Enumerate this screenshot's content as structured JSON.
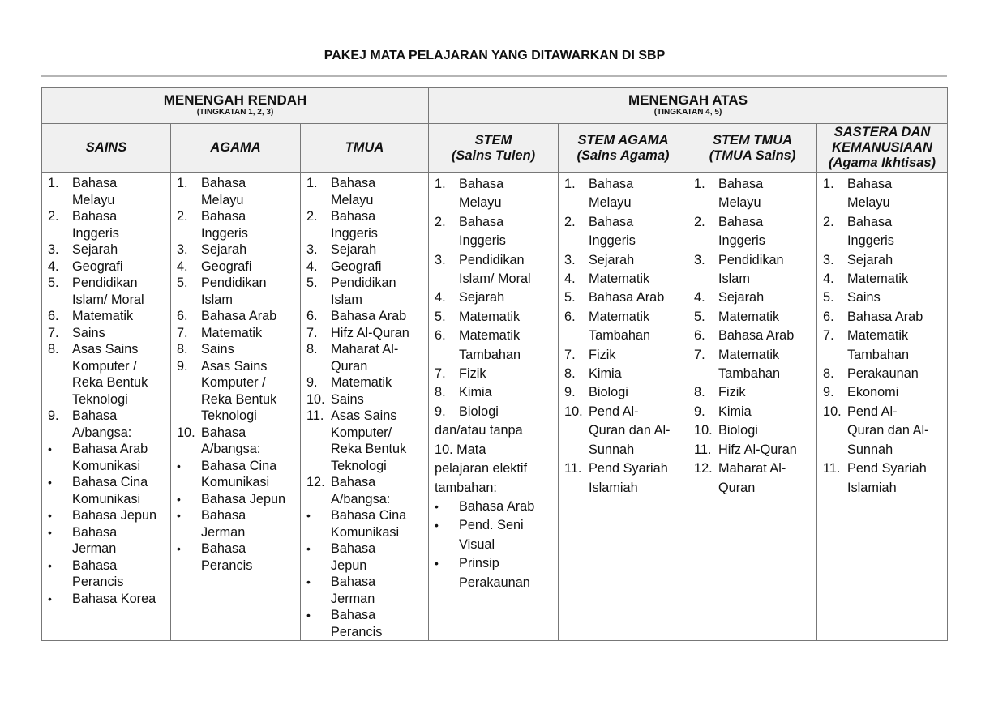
{
  "title": "PAKEJ MATA PELAJARAN YANG DITAWARKAN DI SBP",
  "groups": [
    {
      "label": "MENENGAH RENDAH",
      "sub": "(TINGKATAN 1, 2, 3)"
    },
    {
      "label": "MENENGAH ATAS",
      "sub": "(TINGKATAN 4, 5)"
    }
  ],
  "columns": [
    {
      "header": "SAINS",
      "items": [
        {
          "m": "1.",
          "t": "Bahasa\nMelayu"
        },
        {
          "m": "2.",
          "t": "Bahasa\nInggeris"
        },
        {
          "m": "3.",
          "t": "Sejarah"
        },
        {
          "m": "4.",
          "t": "Geografi"
        },
        {
          "m": "5.",
          "t": "Pendidikan\nIslam/ Moral"
        },
        {
          "m": "6.",
          "t": "Matematik"
        },
        {
          "m": "7.",
          "t": "Sains"
        },
        {
          "m": "8.",
          "t": "Asas Sains\nKomputer /\nReka Bentuk\nTeknologi"
        },
        {
          "m": "9.",
          "t": "Bahasa\nA/bangsa:"
        },
        {
          "m": "•",
          "t": "Bahasa Arab\nKomunikasi"
        },
        {
          "m": "•",
          "t": "Bahasa Cina\nKomunikasi"
        },
        {
          "m": "•",
          "t": "Bahasa Jepun"
        },
        {
          "m": "•",
          "t": "Bahasa\nJerman"
        },
        {
          "m": "•",
          "t": "Bahasa\nPerancis"
        },
        {
          "m": "•",
          "t": "Bahasa Korea"
        }
      ]
    },
    {
      "header": "AGAMA",
      "items": [
        {
          "m": "1.",
          "t": "Bahasa\nMelayu"
        },
        {
          "m": "2.",
          "t": "Bahasa\nInggeris"
        },
        {
          "m": "3.",
          "t": "Sejarah"
        },
        {
          "m": "4.",
          "t": "Geografi"
        },
        {
          "m": "5.",
          "t": "Pendidikan\nIslam"
        },
        {
          "m": "6.",
          "t": "Bahasa Arab"
        },
        {
          "m": "7.",
          "t": "Matematik"
        },
        {
          "m": "8.",
          "t": "Sains"
        },
        {
          "m": "9.",
          "t": "Asas Sains\nKomputer /\nReka Bentuk\nTeknologi"
        },
        {
          "m": "10.",
          "t": "Bahasa\nA/bangsa:"
        },
        {
          "m": "•",
          "t": "Bahasa Cina\nKomunikasi"
        },
        {
          "m": "•",
          "t": "Bahasa Jepun"
        },
        {
          "m": "•",
          "t": "Bahasa\nJerman"
        },
        {
          "m": "•",
          "t": "Bahasa\nPerancis"
        }
      ]
    },
    {
      "header": "TMUA",
      "items": [
        {
          "m": "1.",
          "t": "Bahasa\nMelayu"
        },
        {
          "m": "2.",
          "t": "Bahasa\nInggeris"
        },
        {
          "m": "3.",
          "t": "Sejarah"
        },
        {
          "m": "4.",
          "t": "Geografi"
        },
        {
          "m": "5.",
          "t": "Pendidikan\nIslam"
        },
        {
          "m": "6.",
          "t": "Bahasa Arab"
        },
        {
          "m": "7.",
          "t": "Hifz Al-Quran"
        },
        {
          "m": "8.",
          "t": "Maharat Al-\nQuran"
        },
        {
          "m": "9.",
          "t": "Matematik"
        },
        {
          "m": "10.",
          "t": "Sains"
        },
        {
          "m": "11.",
          "t": "Asas Sains\nKomputer/\nReka Bentuk\nTeknologi"
        },
        {
          "m": "12.",
          "t": "Bahasa\nA/bangsa:"
        },
        {
          "m": "•",
          "t": "Bahasa Cina\nKomunikasi"
        },
        {
          "m": "•",
          "t": "Bahasa\nJepun"
        },
        {
          "m": "•",
          "t": "Bahasa\nJerman"
        },
        {
          "m": "•",
          "t": "Bahasa\nPerancis"
        }
      ]
    },
    {
      "header": "STEM\n(Sains Tulen)",
      "items": [
        {
          "m": "1.",
          "t": "Bahasa\nMelayu"
        },
        {
          "m": "2.",
          "t": "Bahasa\nInggeris"
        },
        {
          "m": "3.",
          "t": "Pendidikan\nIslam/ Moral"
        },
        {
          "m": "4.",
          "t": "Sejarah"
        },
        {
          "m": "5.",
          "t": "Matematik"
        },
        {
          "m": "6.",
          "t": "Matematik\nTambahan"
        },
        {
          "m": "7.",
          "t": "Fizik"
        },
        {
          "m": "8.",
          "t": "Kimia"
        },
        {
          "m": "9.",
          "t": "Biologi"
        },
        {
          "m": "",
          "t": "dan/atau tanpa"
        },
        {
          "m": "",
          "t": "10.    Mata\npelajaran elektif\ntambahan:"
        },
        {
          "m": "•",
          "t": "Bahasa Arab"
        },
        {
          "m": "•",
          "t": "Pend. Seni\nVisual"
        },
        {
          "m": "•",
          "t": "Prinsip\nPerakaunan"
        }
      ]
    },
    {
      "header": "STEM AGAMA\n(Sains Agama)",
      "items": [
        {
          "m": "1.",
          "t": "Bahasa\nMelayu"
        },
        {
          "m": "2.",
          "t": "Bahasa\nInggeris"
        },
        {
          "m": "3.",
          "t": "Sejarah"
        },
        {
          "m": "4.",
          "t": "Matematik"
        },
        {
          "m": "5.",
          "t": "Bahasa Arab"
        },
        {
          "m": "6.",
          "t": "Matematik\nTambahan"
        },
        {
          "m": "7.",
          "t": "Fizik"
        },
        {
          "m": "8.",
          "t": "Kimia"
        },
        {
          "m": "9.",
          "t": "Biologi"
        },
        {
          "m": "10.",
          "t": "Pend Al-\nQuran dan Al-\nSunnah"
        },
        {
          "m": "11.",
          "t": "Pend Syariah\nIslamiah"
        }
      ]
    },
    {
      "header": "STEM TMUA\n(TMUA Sains)",
      "items": [
        {
          "m": "1.",
          "t": "Bahasa\nMelayu"
        },
        {
          "m": "2.",
          "t": "Bahasa\nInggeris"
        },
        {
          "m": "3.",
          "t": "Pendidikan\nIslam"
        },
        {
          "m": "4.",
          "t": "Sejarah"
        },
        {
          "m": "5.",
          "t": "Matematik"
        },
        {
          "m": "6.",
          "t": "Bahasa Arab"
        },
        {
          "m": "7.",
          "t": "Matematik\nTambahan"
        },
        {
          "m": "8.",
          "t": "Fizik"
        },
        {
          "m": "9.",
          "t": "Kimia"
        },
        {
          "m": "10.",
          "t": "Biologi"
        },
        {
          "m": "11.",
          "t": "Hifz Al-Quran"
        },
        {
          "m": "12.",
          "t": "Maharat Al-\nQuran"
        }
      ]
    },
    {
      "header": "SASTERA DAN\nKEMANUSIAAN\n(Agama Ikhtisas)",
      "items": [
        {
          "m": "1.",
          "t": "Bahasa\nMelayu"
        },
        {
          "m": "2.",
          "t": "Bahasa\nInggeris"
        },
        {
          "m": "3.",
          "t": "Sejarah"
        },
        {
          "m": "4.",
          "t": "Matematik"
        },
        {
          "m": "5.",
          "t": "Sains"
        },
        {
          "m": "6.",
          "t": "Bahasa Arab"
        },
        {
          "m": "7.",
          "t": "Matematik\nTambahan"
        },
        {
          "m": "8.",
          "t": "Perakaunan"
        },
        {
          "m": "9.",
          "t": "Ekonomi"
        },
        {
          "m": "10.",
          "t": "Pend Al-\nQuran dan Al-\nSunnah"
        },
        {
          "m": "11.",
          "t": "Pend Syariah\nIslamiah"
        }
      ]
    }
  ]
}
